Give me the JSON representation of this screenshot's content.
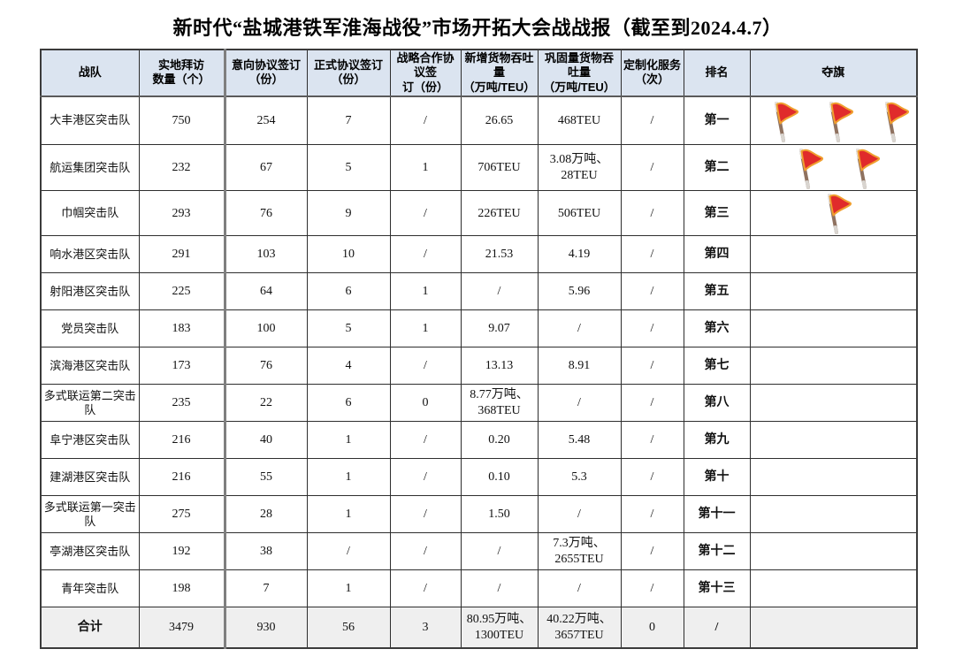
{
  "title": "新时代“盐城港铁军淮海战役”市场开拓大会战战报（截至到2024.4.7）",
  "icons": {
    "flag": "red-flag-icon"
  },
  "colors": {
    "header_bg": "#dbe4f0",
    "total_row_bg": "#efefef",
    "flag_red": "#e02b2b",
    "flag_outline": "#f09f2f",
    "flag_pole": "#8f7260",
    "divider_gray": "#7f7f7f"
  },
  "table": {
    "columns": [
      {
        "id": "team",
        "label": "战队"
      },
      {
        "id": "visits",
        "label": "实地拜访\n数量（个）"
      },
      {
        "id": "intent",
        "label": "意向协议签订\n（份）"
      },
      {
        "id": "formal",
        "label": "正式协议签订\n（份）"
      },
      {
        "id": "strategic",
        "label": "战略合作协议签\n订（份）"
      },
      {
        "id": "new-throughput",
        "label": "新增货物吞吐量\n（万吨/TEU）"
      },
      {
        "id": "consolidated-throughput",
        "label": "巩固量货物吞吐量\n（万吨/TEU）"
      },
      {
        "id": "custom-service",
        "label": "定制化服务\n（次）"
      },
      {
        "id": "rank",
        "label": "排名"
      },
      {
        "id": "flags",
        "label": "夺旗"
      }
    ],
    "rows": [
      {
        "team": "大丰港区突击队",
        "visits": "750",
        "intent": "254",
        "formal": "7",
        "strategic": "/",
        "new_throughput": "26.65",
        "consolidated": "468TEU",
        "custom": "/",
        "rank": "第一",
        "flags": 3
      },
      {
        "team": "航运集团突击队",
        "visits": "232",
        "intent": "67",
        "formal": "5",
        "strategic": "1",
        "new_throughput": "706TEU",
        "consolidated": "3.08万吨、\n28TEU",
        "custom": "/",
        "rank": "第二",
        "flags": 2
      },
      {
        "team": "巾帼突击队",
        "visits": "293",
        "intent": "76",
        "formal": "9",
        "strategic": "/",
        "new_throughput": "226TEU",
        "consolidated": "506TEU",
        "custom": "/",
        "rank": "第三",
        "flags": 1
      },
      {
        "team": "响水港区突击队",
        "visits": "291",
        "intent": "103",
        "formal": "10",
        "strategic": "/",
        "new_throughput": "21.53",
        "consolidated": "4.19",
        "custom": "/",
        "rank": "第四",
        "flags": 0
      },
      {
        "team": "射阳港区突击队",
        "visits": "225",
        "intent": "64",
        "formal": "6",
        "strategic": "1",
        "new_throughput": "/",
        "consolidated": "5.96",
        "custom": "/",
        "rank": "第五",
        "flags": 0
      },
      {
        "team": "党员突击队",
        "visits": "183",
        "intent": "100",
        "formal": "5",
        "strategic": "1",
        "new_throughput": "9.07",
        "consolidated": "/",
        "custom": "/",
        "rank": "第六",
        "flags": 0
      },
      {
        "team": "滨海港区突击队",
        "visits": "173",
        "intent": "76",
        "formal": "4",
        "strategic": "/",
        "new_throughput": "13.13",
        "consolidated": "8.91",
        "custom": "/",
        "rank": "第七",
        "flags": 0
      },
      {
        "team": "多式联运第二突击队",
        "visits": "235",
        "intent": "22",
        "formal": "6",
        "strategic": "0",
        "new_throughput": "8.77万吨、\n368TEU",
        "consolidated": "/",
        "custom": "/",
        "rank": "第八",
        "flags": 0
      },
      {
        "team": "阜宁港区突击队",
        "visits": "216",
        "intent": "40",
        "formal": "1",
        "strategic": "/",
        "new_throughput": "0.20",
        "consolidated": "5.48",
        "custom": "/",
        "rank": "第九",
        "flags": 0
      },
      {
        "team": "建湖港区突击队",
        "visits": "216",
        "intent": "55",
        "formal": "1",
        "strategic": "/",
        "new_throughput": "0.10",
        "consolidated": "5.3",
        "custom": "/",
        "rank": "第十",
        "flags": 0
      },
      {
        "team": "多式联运第一突击队",
        "visits": "275",
        "intent": "28",
        "formal": "1",
        "strategic": "/",
        "new_throughput": "1.50",
        "consolidated": "/",
        "custom": "/",
        "rank": "第十一",
        "flags": 0
      },
      {
        "team": "亭湖港区突击队",
        "visits": "192",
        "intent": "38",
        "formal": "/",
        "strategic": "/",
        "new_throughput": "/",
        "consolidated": "7.3万吨、\n2655TEU",
        "custom": "/",
        "rank": "第十二",
        "flags": 0
      },
      {
        "team": "青年突击队",
        "visits": "198",
        "intent": "7",
        "formal": "1",
        "strategic": "/",
        "new_throughput": "/",
        "consolidated": "/",
        "custom": "/",
        "rank": "第十三",
        "flags": 0
      }
    ],
    "total": {
      "team": "合计",
      "visits": "3479",
      "intent": "930",
      "formal": "56",
      "strategic": "3",
      "new_throughput": "80.95万吨、\n1300TEU",
      "consolidated": "40.22万吨、\n3657TEU",
      "custom": "0",
      "rank": "/",
      "flags": 0
    }
  }
}
